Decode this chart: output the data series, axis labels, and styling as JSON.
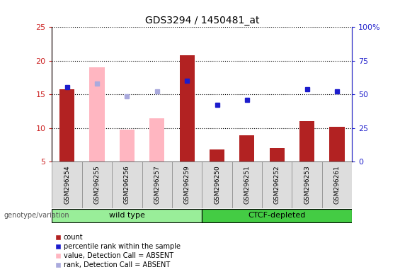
{
  "title": "GDS3294 / 1450481_at",
  "samples": [
    "GSM296254",
    "GSM296255",
    "GSM296256",
    "GSM296257",
    "GSM296259",
    "GSM296250",
    "GSM296251",
    "GSM296252",
    "GSM296253",
    "GSM296261"
  ],
  "wt_group": [
    "GSM296254",
    "GSM296255",
    "GSM296256",
    "GSM296257",
    "GSM296259"
  ],
  "ctcf_group": [
    "GSM296250",
    "GSM296251",
    "GSM296252",
    "GSM296253",
    "GSM296261"
  ],
  "count_values": [
    15.8,
    null,
    null,
    null,
    20.8,
    6.8,
    8.9,
    7.0,
    11.0,
    10.2
  ],
  "percentile_rank": [
    16.1,
    null,
    null,
    null,
    17.0,
    13.5,
    14.2,
    null,
    15.8,
    15.5
  ],
  "absent_value": [
    null,
    19.0,
    9.8,
    11.5,
    null,
    null,
    null,
    null,
    null,
    null
  ],
  "absent_rank": [
    null,
    16.6,
    14.7,
    15.5,
    null,
    null,
    null,
    null,
    null,
    null
  ],
  "ylim_left": [
    5,
    25
  ],
  "ylim_right": [
    0,
    100
  ],
  "yticks_left": [
    5,
    10,
    15,
    20,
    25
  ],
  "yticks_right": [
    0,
    25,
    50,
    75,
    100
  ],
  "yticklabels_right": [
    "0",
    "25",
    "50",
    "75",
    "100%"
  ],
  "color_count": "#b22222",
  "color_percentile": "#1c1ccc",
  "color_absent_value": "#ffb6c1",
  "color_absent_rank": "#aaaadd",
  "color_group_wt": "#99ee99",
  "color_group_ctcf": "#44cc44",
  "color_axis_left": "#cc2222",
  "color_axis_right": "#2222cc",
  "bar_width": 0.5,
  "legend_labels": [
    "count",
    "percentile rank within the sample",
    "value, Detection Call = ABSENT",
    "rank, Detection Call = ABSENT"
  ],
  "legend_colors": [
    "#b22222",
    "#1c1ccc",
    "#ffb6c1",
    "#aaaadd"
  ]
}
